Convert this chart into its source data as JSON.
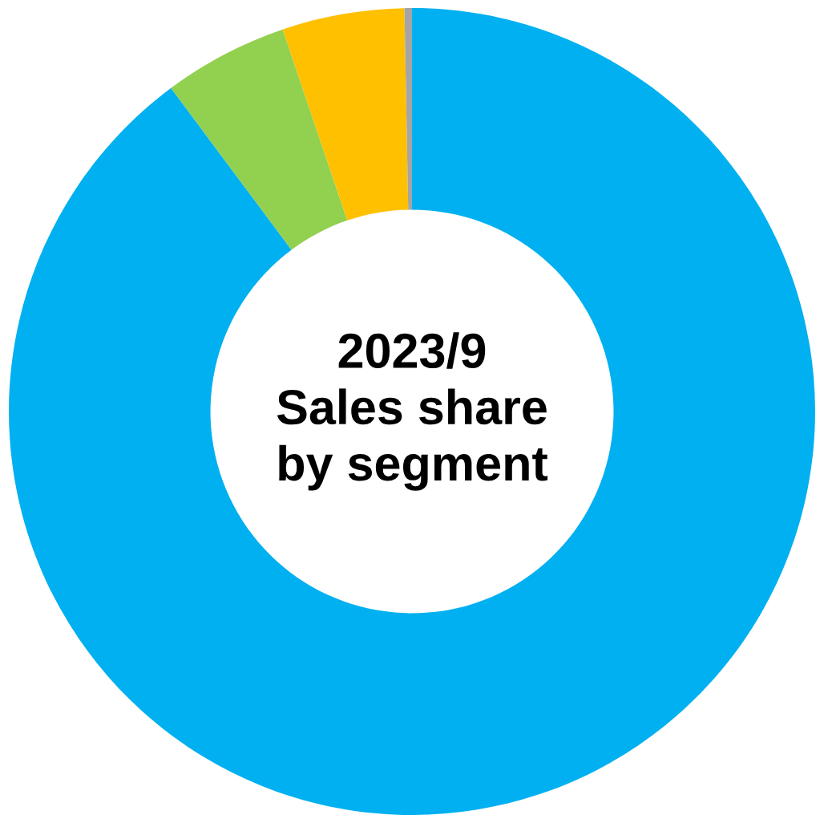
{
  "chart_data": {
    "type": "donut",
    "title": "2023/9\nSales share\nby segment",
    "categories": [
      null,
      null,
      null,
      null
    ],
    "values": [
      89.8,
      5.0,
      4.9,
      0.3
    ],
    "colors": [
      "#00b0f0",
      "#92d050",
      "#ffc000",
      "#a5a5a5"
    ],
    "legend": false
  }
}
